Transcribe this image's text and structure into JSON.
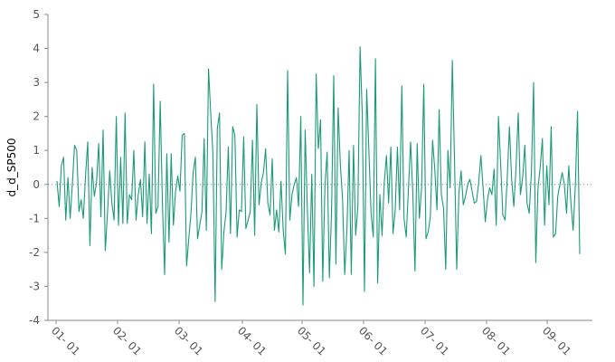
{
  "chart_data": {
    "type": "line",
    "title": "",
    "xlabel": "",
    "ylabel": "d_d_SP500",
    "ylim": [
      -4,
      5
    ],
    "yticks": [
      -4,
      -3,
      -2,
      -1,
      0,
      1,
      2,
      3,
      4,
      5
    ],
    "x_tick_labels": [
      "01-01",
      "02-01",
      "03-01",
      "04-01",
      "05-01",
      "06-01",
      "07-01",
      "08-01",
      "09-01"
    ],
    "x_start": "01-03",
    "x_end": "09-30",
    "zero_line": true,
    "grid": false,
    "legend": "none",
    "colors": {
      "line": "#1a9a76",
      "zero_line": "#6a8c6a"
    },
    "series": [
      {
        "values": [
          0.1,
          -0.65,
          0.55,
          0.8,
          -1.05,
          0.2,
          -1.0,
          0.0,
          1.15,
          1.0,
          -0.8,
          -0.45,
          -1.0,
          0.25,
          1.25,
          -1.8,
          0.5,
          -0.35,
          0.05,
          1.2,
          -0.95,
          1.6,
          -1.95,
          -0.85,
          0.4,
          -0.55,
          -1.05,
          2.0,
          -1.2,
          0.8,
          -1.15,
          2.1,
          -1.15,
          -0.3,
          -0.45,
          1.0,
          -1.05,
          -0.3,
          0.15,
          -0.95,
          1.25,
          -1.15,
          0.3,
          -1.45,
          2.95,
          -0.85,
          -0.65,
          2.45,
          -0.55,
          -2.65,
          0.9,
          -1.7,
          0.9,
          -1.2,
          -0.2,
          0.25,
          -0.2,
          1.45,
          1.5,
          -2.4,
          -1.6,
          -0.85,
          0.35,
          0.8,
          -1.6,
          -1.2,
          -0.8,
          1.35,
          -1.35,
          3.4,
          2.1,
          0.9,
          -3.45,
          1.65,
          2.1,
          -2.5,
          -1.4,
          -0.8,
          1.1,
          -1.45,
          1.7,
          1.45,
          -1.55,
          -0.75,
          -0.8,
          1.4,
          -1.3,
          -1.05,
          -0.8,
          1.3,
          -1.5,
          2.35,
          -0.6,
          0.05,
          0.35,
          1.05,
          -0.55,
          -0.9,
          0.75,
          -1.35,
          -0.75,
          -1.4,
          0.1,
          -1.35,
          -2.05,
          3.35,
          -1.05,
          -0.3,
          0.0,
          0.2,
          -0.65,
          2.0,
          -3.55,
          1.6,
          -0.75,
          -2.6,
          0.3,
          -3.0,
          3.25,
          1.05,
          1.9,
          -2.85,
          -0.05,
          0.95,
          -2.75,
          -0.85,
          3.2,
          -2.35,
          2.25,
          0.6,
          -0.4,
          -2.65,
          -1.35,
          1.0,
          -2.65,
          1.15,
          -1.5,
          -0.65,
          4.05,
          2.05,
          -3.15,
          2.8,
          1.0,
          -0.85,
          -1.55,
          3.7,
          -2.9,
          -0.3,
          -1.5,
          0.05,
          0.85,
          -0.55,
          1.1,
          -1.45,
          -0.75,
          1.1,
          -0.75,
          2.9,
          -1.0,
          -1.55,
          -0.15,
          1.25,
          -0.25,
          -2.55,
          1.2,
          -1.0,
          -0.1,
          2.95,
          -1.6,
          -1.4,
          -0.95,
          1.3,
          0.45,
          -0.75,
          2.2,
          -0.3,
          -0.7,
          -2.5,
          1.0,
          -0.1,
          3.65,
          0.7,
          -2.5,
          -0.25,
          0.4,
          -0.6,
          -0.35,
          0.0,
          0.15,
          -0.2,
          -0.55,
          -0.5,
          0.05,
          0.85,
          -0.1,
          -1.1,
          -0.45,
          -0.1,
          -0.3,
          0.45,
          -1.2,
          2.0,
          0.6,
          -0.9,
          -1.05,
          0.2,
          1.7,
          0.15,
          -0.65,
          0.5,
          2.1,
          -0.3,
          0.2,
          1.15,
          -0.55,
          -0.85,
          0.35,
          3.0,
          -2.3,
          -0.1,
          0.5,
          1.35,
          -1.2,
          0.55,
          -0.6,
          1.7,
          -1.55,
          -1.45,
          -0.35,
          0.0,
          0.35,
          0.0,
          -0.85,
          0.55,
          -0.55,
          -1.35,
          -0.05,
          2.15,
          -2.05
        ]
      }
    ]
  }
}
